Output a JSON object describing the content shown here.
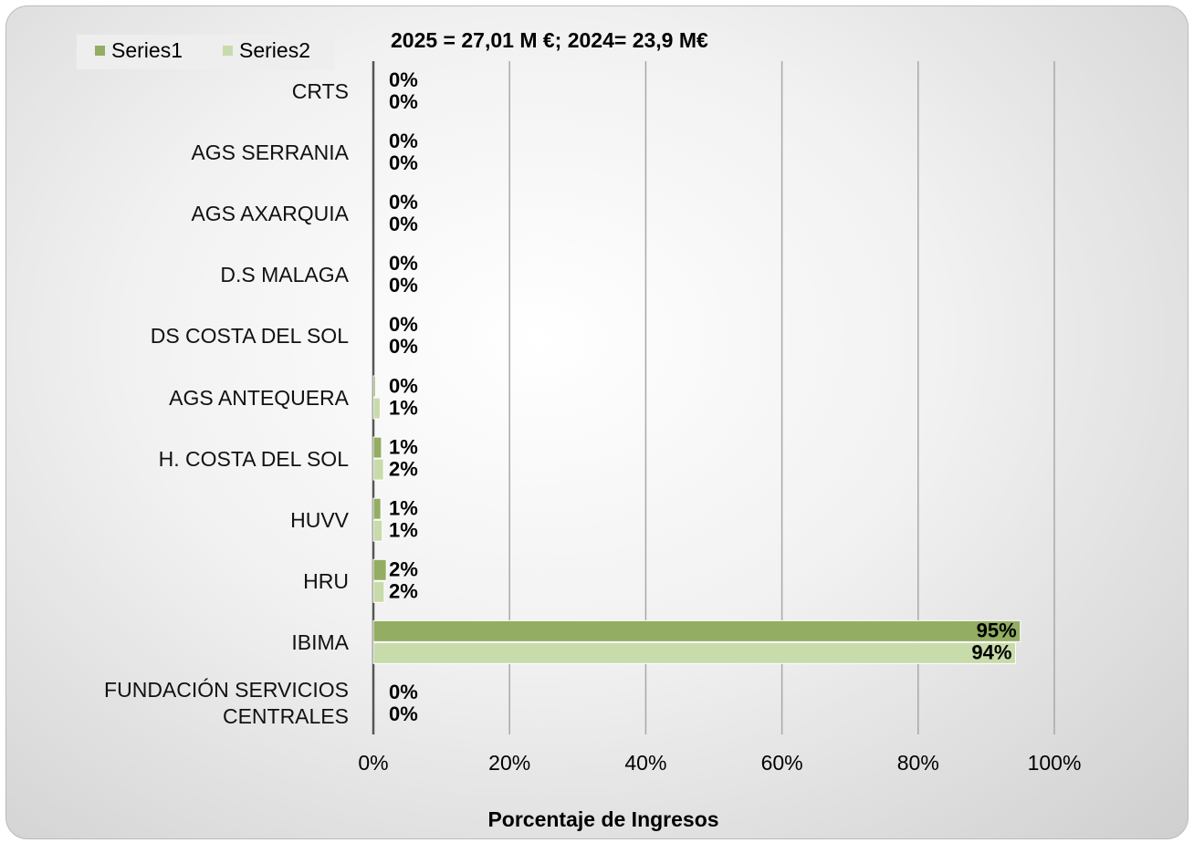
{
  "chart_data": {
    "type": "bar",
    "orientation": "horizontal",
    "title": "2025 = 27,01  M €;  2024= 23,9 M€",
    "x_label": "Porcentaje de Ingresos",
    "categories": [
      "CRTS",
      "AGS SERRANIA",
      "AGS AXARQUIA",
      "D.S MALAGA",
      "DS COSTA DEL SOL",
      "AGS ANTEQUERA",
      "H. COSTA DEL SOL",
      "HUVV",
      "HRU",
      "IBIMA",
      "FUNDACIÓN SERVICIOS CENTRALES"
    ],
    "series": [
      {
        "name": "Series1",
        "color": "#93ad62",
        "values": [
          0,
          0,
          0,
          0,
          0,
          0.3,
          1.2,
          1.1,
          1.9,
          95,
          0
        ],
        "value_labels": [
          "0%",
          "0%",
          "0%",
          "0%",
          "0%",
          "0%",
          "1%",
          "1%",
          "2%",
          "95%",
          "0%"
        ]
      },
      {
        "name": "Series2",
        "color": "#c8dbaa",
        "values": [
          0,
          0,
          0,
          0,
          0,
          1.0,
          1.5,
          1.3,
          1.6,
          94.3,
          0
        ],
        "value_labels": [
          "0%",
          "0%",
          "0%",
          "0%",
          "0%",
          "1%",
          "2%",
          "1%",
          "2%",
          "94%",
          "0%"
        ]
      }
    ],
    "xlim": [
      0,
      100
    ],
    "xticks": [
      {
        "value": 0,
        "label": "0%"
      },
      {
        "value": 20,
        "label": "20%"
      },
      {
        "value": 40,
        "label": "40%"
      },
      {
        "value": 60,
        "label": "60%"
      },
      {
        "value": 80,
        "label": "80%"
      },
      {
        "value": 100,
        "label": "100%"
      }
    ],
    "grid": true,
    "legend": "top-left"
  }
}
